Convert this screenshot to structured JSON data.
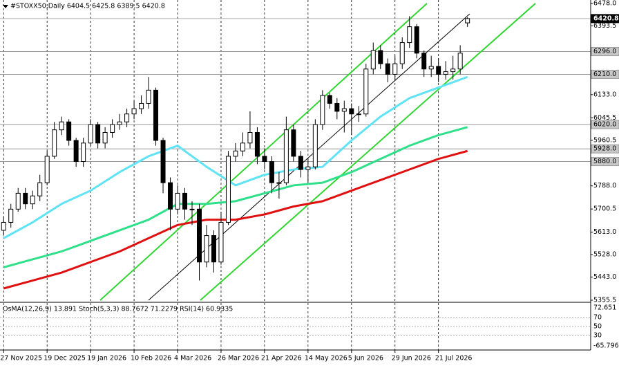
{
  "chart_data": {
    "type": "candlestick",
    "title": "#STOXX50,Daily  6404.5 6425.8 6389.5 6420.8",
    "open": [
      5620,
      5650,
      5700,
      5760,
      5720,
      5750,
      5800,
      5900,
      6000,
      6030,
      5960,
      5880,
      5950,
      6020,
      5950,
      5990,
      6020,
      6030,
      6060,
      6080,
      6100,
      6150,
      5960,
      5800,
      5700,
      5760,
      5700,
      5700,
      5500,
      5600,
      5500,
      5650,
      5900,
      5920,
      5950,
      5990,
      5900,
      5880,
      5800,
      5800,
      6000,
      5900,
      5850,
      5860,
      6020,
      6130,
      6100,
      6070,
      6080,
      6060,
      6060,
      6230,
      6300,
      6250,
      6210,
      6250,
      6330,
      6390,
      6290,
      6230,
      6240,
      6210,
      6220,
      6230,
      6404.5
    ],
    "high": [
      5670,
      5720,
      5780,
      5780,
      5770,
      5830,
      5920,
      6030,
      6050,
      6040,
      5970,
      5970,
      6040,
      6030,
      6010,
      6040,
      6060,
      6080,
      6110,
      6130,
      6200,
      6160,
      5970,
      5820,
      5790,
      5780,
      5730,
      5720,
      5640,
      5620,
      5690,
      5920,
      5950,
      5990,
      6070,
      6010,
      5930,
      5900,
      5840,
      6050,
      6020,
      5920,
      5890,
      6040,
      6150,
      6140,
      6120,
      6110,
      6100,
      6090,
      6250,
      6330,
      6320,
      6270,
      6280,
      6350,
      6430,
      6400,
      6300,
      6280,
      6270,
      6260,
      6280,
      6320,
      6425.8
    ],
    "low": [
      5600,
      5630,
      5690,
      5700,
      5700,
      5730,
      5790,
      5890,
      5980,
      5940,
      5860,
      5860,
      5940,
      5930,
      5930,
      5970,
      6000,
      6010,
      6040,
      6060,
      6080,
      5940,
      5760,
      5620,
      5680,
      5660,
      5640,
      5430,
      5480,
      5460,
      5490,
      5640,
      5880,
      5900,
      5930,
      5870,
      5850,
      5760,
      5740,
      5790,
      5880,
      5820,
      5800,
      5850,
      6000,
      6080,
      6040,
      5990,
      5980,
      6030,
      6050,
      6210,
      6230,
      6180,
      6190,
      6230,
      6310,
      6270,
      6200,
      6200,
      6180,
      6190,
      6190,
      6210,
      6389.5
    ],
    "close": [
      5650,
      5700,
      5760,
      5720,
      5750,
      5800,
      5900,
      6000,
      6030,
      5960,
      5880,
      5950,
      6020,
      5950,
      5990,
      6020,
      6030,
      6060,
      6080,
      6100,
      6150,
      5960,
      5800,
      5700,
      5760,
      5700,
      5700,
      5500,
      5600,
      5500,
      5650,
      5900,
      5920,
      5950,
      5990,
      5900,
      5880,
      5800,
      5800,
      6000,
      5900,
      5850,
      5860,
      6020,
      6130,
      6100,
      6070,
      6080,
      6060,
      6060,
      6230,
      6300,
      6250,
      6210,
      6250,
      6330,
      6390,
      6290,
      6230,
      6240,
      6210,
      6220,
      6230,
      6290,
      6420.8
    ],
    "series": [
      {
        "color": "#5fe3f5",
        "x": [
          0,
          4,
          8,
          12,
          16,
          20,
          24,
          28,
          32,
          36,
          40,
          44,
          48,
          52,
          56,
          60,
          64
        ],
        "values": [
          5590,
          5650,
          5720,
          5770,
          5840,
          5900,
          5940,
          5860,
          5790,
          5830,
          5850,
          5860,
          5960,
          6050,
          6120,
          6160,
          6200
        ]
      },
      {
        "color": "#2fe08a",
        "x": [
          0,
          4,
          8,
          12,
          16,
          20,
          24,
          28,
          32,
          36,
          40,
          44,
          48,
          52,
          56,
          60,
          64
        ],
        "values": [
          5480,
          5510,
          5540,
          5580,
          5620,
          5660,
          5720,
          5720,
          5730,
          5760,
          5790,
          5800,
          5840,
          5890,
          5940,
          5980,
          6010
        ]
      },
      {
        "color": "#e01010",
        "x": [
          0,
          4,
          8,
          12,
          16,
          20,
          24,
          28,
          32,
          36,
          40,
          44,
          48,
          52,
          56,
          60,
          64
        ],
        "values": [
          5400,
          5430,
          5460,
          5500,
          5540,
          5590,
          5640,
          5660,
          5660,
          5680,
          5710,
          5730,
          5770,
          5810,
          5850,
          5890,
          5920
        ]
      }
    ],
    "xlim": [
      -0.5,
      81
    ],
    "xticks": [
      {
        "value": 0,
        "label": "27 Nov 2025"
      },
      {
        "value": 6,
        "label": "19 Dec 2025"
      },
      {
        "value": 12,
        "label": "19 Jan 2026"
      },
      {
        "value": 18,
        "label": "10 Feb 2026"
      },
      {
        "value": 24,
        "label": "4 Mar 2026"
      },
      {
        "value": 30,
        "label": "26 Mar 2026"
      },
      {
        "value": 36,
        "label": "21 Apr 2026"
      },
      {
        "value": 42,
        "label": "14 May 2026"
      },
      {
        "value": 48,
        "label": "5 Jun 2026"
      },
      {
        "value": 54,
        "label": "29 Jun 2026"
      },
      {
        "value": 60,
        "label": "21 Jul 2026"
      }
    ],
    "ylim": [
      5355.5,
      6478.0
    ],
    "yticks": [
      {
        "value": 6478.0,
        "label": "6478.0"
      },
      {
        "value": 6393.5,
        "label": "6393.5"
      },
      {
        "value": 6133.0,
        "label": "6133.0"
      },
      {
        "value": 6045.5,
        "label": "6045.5"
      },
      {
        "value": 5960.5,
        "label": "5960.5"
      },
      {
        "value": 5788.0,
        "label": "5788.0"
      },
      {
        "value": 5700.5,
        "label": "5700.5"
      },
      {
        "value": 5613.0,
        "label": "5613.0"
      },
      {
        "value": 5528.0,
        "label": "5528.0"
      },
      {
        "value": 5443.0,
        "label": "5443.0"
      },
      {
        "value": 5355.5,
        "label": "5355.5"
      }
    ],
    "levels": [
      {
        "value": 6420.8,
        "label": "6420.8"
      },
      {
        "value": 6296.0,
        "label": "6296.0"
      },
      {
        "value": 6210.0,
        "label": "6210.0"
      },
      {
        "value": 6020.0,
        "label": "6020.0"
      },
      {
        "value": 5928.0,
        "label": "5928.0"
      },
      {
        "value": 5880.0,
        "label": "5880.0"
      }
    ],
    "grid": true,
    "indicator": {
      "title": "OsMA(12,26,9) 13.891  Stoch(5,3,3) 88.7672 71.2279  RSI(14) 60.9335",
      "ylim": [
        0,
        100
      ],
      "yticks": [
        70,
        50,
        30
      ],
      "range_labels": [
        72.651,
        -65.796
      ]
    }
  }
}
